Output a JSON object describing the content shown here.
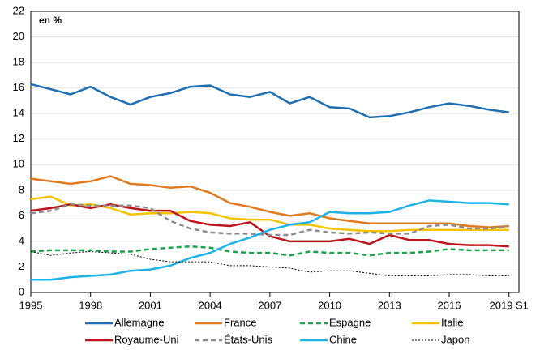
{
  "chart_data": {
    "type": "line",
    "annotation": "en %",
    "x": [
      1995,
      1996,
      1997,
      1998,
      1999,
      2000,
      2001,
      2002,
      2003,
      2004,
      2005,
      2006,
      2007,
      2008,
      2009,
      2010,
      2011,
      2012,
      2013,
      2014,
      2015,
      2016,
      2017,
      2018,
      2019
    ],
    "xlim": [
      1995,
      2019.5
    ],
    "xticks": [
      1995,
      1998,
      2001,
      2004,
      2007,
      2010,
      2013,
      2016,
      {
        "value": 2019,
        "label": "2019 S1"
      }
    ],
    "ylim": [
      0,
      22
    ],
    "yticks": [
      0,
      2,
      4,
      6,
      8,
      10,
      12,
      14,
      16,
      18,
      20,
      22
    ],
    "grid": true,
    "series": [
      {
        "name": "Allemagne",
        "color": "#1f6eb4",
        "dash": "solid",
        "values": [
          16.3,
          15.9,
          15.5,
          16.1,
          15.3,
          14.7,
          15.3,
          15.6,
          16.1,
          16.2,
          15.5,
          15.3,
          15.7,
          14.8,
          15.3,
          14.5,
          14.4,
          13.7,
          13.8,
          14.1,
          14.5,
          14.8,
          14.6,
          14.3,
          14.1
        ]
      },
      {
        "name": "France",
        "color": "#e07b1f",
        "dash": "solid",
        "values": [
          8.9,
          8.7,
          8.5,
          8.7,
          9.1,
          8.5,
          8.4,
          8.2,
          8.3,
          7.8,
          7.0,
          6.7,
          6.3,
          6.0,
          6.2,
          5.8,
          5.6,
          5.4,
          5.4,
          5.4,
          5.4,
          5.4,
          5.2,
          5.1,
          5.2
        ]
      },
      {
        "name": "Espagne",
        "color": "#1aa34a",
        "dash": "dashed",
        "values": [
          3.2,
          3.3,
          3.3,
          3.3,
          3.2,
          3.2,
          3.4,
          3.5,
          3.6,
          3.5,
          3.2,
          3.1,
          3.1,
          2.9,
          3.2,
          3.1,
          3.1,
          2.9,
          3.1,
          3.1,
          3.2,
          3.4,
          3.3,
          3.3,
          3.3
        ]
      },
      {
        "name": "Italie",
        "color": "#f5c400",
        "dash": "solid",
        "values": [
          7.3,
          7.5,
          6.8,
          6.9,
          6.6,
          6.1,
          6.2,
          6.2,
          6.3,
          6.2,
          5.8,
          5.7,
          5.7,
          5.3,
          5.3,
          5.0,
          4.9,
          4.8,
          4.8,
          4.9,
          4.9,
          4.9,
          4.9,
          4.9,
          4.9
        ]
      },
      {
        "name": "Royaume-Uni",
        "color": "#c0141c",
        "dash": "solid",
        "values": [
          6.4,
          6.6,
          6.9,
          6.6,
          6.9,
          6.6,
          6.4,
          6.4,
          5.6,
          5.3,
          5.2,
          5.5,
          4.4,
          4.0,
          4.0,
          4.0,
          4.2,
          3.8,
          4.5,
          4.1,
          4.1,
          3.8,
          3.7,
          3.7,
          3.6
        ]
      },
      {
        "name": "États-Unis",
        "color": "#8c8c8c",
        "dash": "dashed",
        "values": [
          6.2,
          6.4,
          6.9,
          6.8,
          6.8,
          6.8,
          6.6,
          5.6,
          5.0,
          4.7,
          4.6,
          4.6,
          4.5,
          4.5,
          4.9,
          4.7,
          4.6,
          4.7,
          4.6,
          4.6,
          5.2,
          5.3,
          5.0,
          5.0,
          5.2
        ]
      },
      {
        "name": "Chine",
        "color": "#1eb3e6",
        "dash": "solid",
        "values": [
          1.0,
          1.0,
          1.2,
          1.3,
          1.4,
          1.7,
          1.8,
          2.1,
          2.7,
          3.1,
          3.8,
          4.3,
          4.9,
          5.3,
          5.5,
          6.3,
          6.2,
          6.2,
          6.3,
          6.8,
          7.2,
          7.1,
          7.0,
          7.0,
          6.9
        ]
      },
      {
        "name": "Japon",
        "color": "#000000",
        "dash": "dotted",
        "values": [
          3.2,
          2.9,
          3.1,
          3.2,
          3.1,
          3.0,
          2.6,
          2.4,
          2.4,
          2.4,
          2.1,
          2.1,
          2.0,
          1.9,
          1.6,
          1.7,
          1.7,
          1.5,
          1.3,
          1.3,
          1.3,
          1.4,
          1.4,
          1.3,
          1.3
        ]
      }
    ]
  }
}
